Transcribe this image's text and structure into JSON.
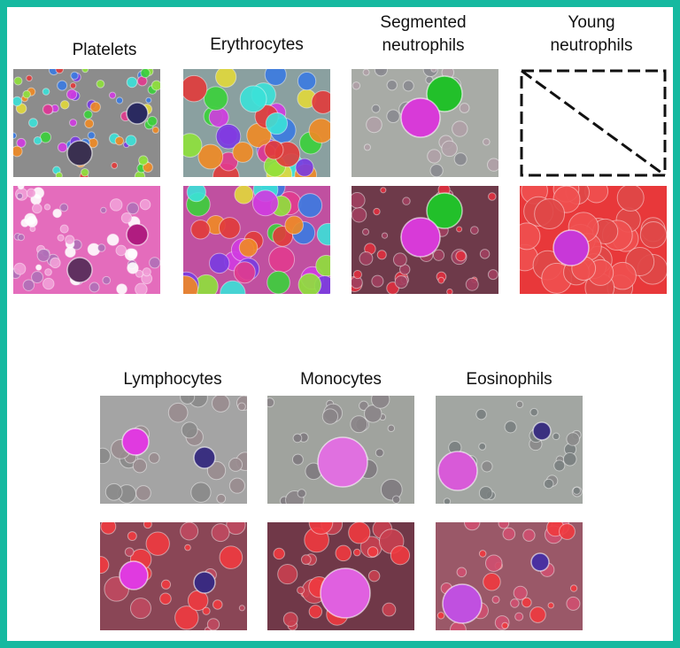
{
  "panels": [
    {
      "label": "Platelets"
    },
    {
      "label": "Erythrocytes"
    },
    {
      "label": "Segmented neutrophils"
    },
    {
      "label": "Young neutrophils"
    },
    {
      "label": "Lymphocytes"
    },
    {
      "label": "Monocytes"
    },
    {
      "label": "Eosinophils"
    }
  ]
}
